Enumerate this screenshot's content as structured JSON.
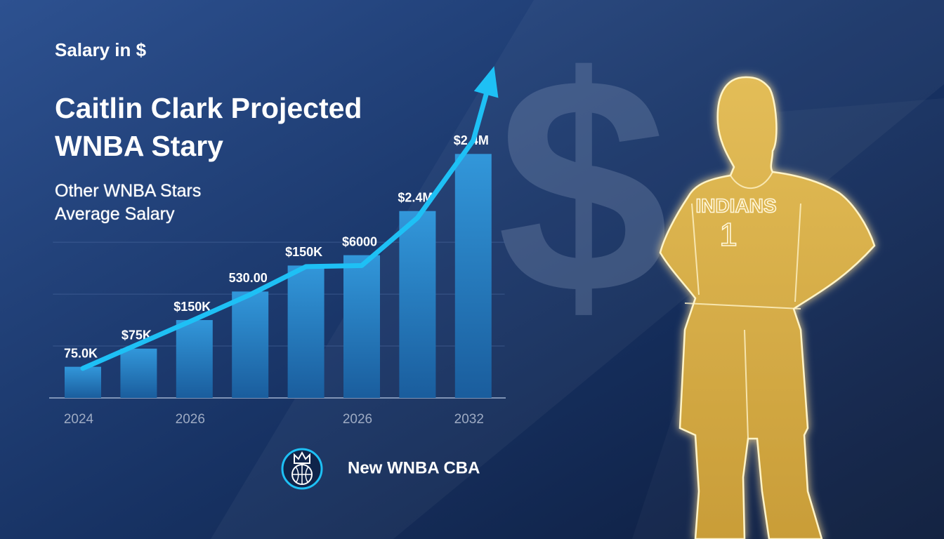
{
  "chart_data": {
    "type": "bar",
    "ylabel": "Salary in $",
    "title": "Caitlin Clark Projected WNBA Stary",
    "categories": [
      "2024",
      null,
      "2026",
      null,
      null,
      "2026",
      null,
      "2032"
    ],
    "series": [
      {
        "name": "Other WNBA Stars Average Salary",
        "color": "#2a86c8",
        "values": [
          0.6,
          0.95,
          1.5,
          2.05,
          2.55,
          2.75,
          3.6,
          4.7
        ],
        "bar_labels": [
          "75.0K",
          "$75K",
          "$150K",
          "530.00",
          "$150K",
          "$6000",
          "$2.4M",
          "$2.4M"
        ]
      },
      {
        "type": "line",
        "color": "#1ec0f5",
        "values": [
          0.57,
          1.04,
          1.51,
          1.99,
          2.53,
          2.55,
          3.47,
          4.96
        ]
      }
    ],
    "ylim": [
      0,
      6.3
    ],
    "grid": true,
    "grid_lines": [
      1,
      2,
      3
    ]
  },
  "background_symbol": "$",
  "jersey": {
    "team": "INDIANS",
    "number": "1"
  },
  "footer": {
    "text": "New WNBA CBA"
  }
}
